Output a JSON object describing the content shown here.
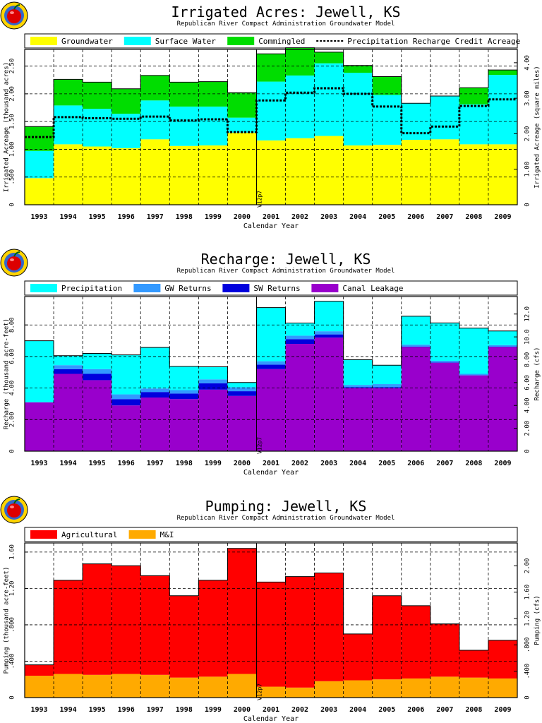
{
  "chart_data": [
    {
      "type": "area",
      "title": "Irrigated Acres: Jewell, KS",
      "subtitle": "Republican River Compact Administration Groundwater Model",
      "xlabel": "Calendar Year",
      "ylabel": "Irrigated Acreage (thousand acres)",
      "y2label": "Irrigated Acreage (square miles)",
      "ylim": [
        0,
        2.8
      ],
      "y2lim": [
        0,
        4.375
      ],
      "yticks": [
        0,
        0.5,
        1,
        1.5,
        2,
        2.5
      ],
      "ytick_labels": [
        "0",
        ".500",
        "1.00",
        "1.50",
        "2.00",
        "2.50"
      ],
      "y2ticks": [
        0,
        1,
        2,
        3,
        4
      ],
      "y2tick_labels": [
        "0",
        "1.00",
        "2.00",
        "3.00",
        "4.00"
      ],
      "stacked": true,
      "grid": true,
      "legend": "top",
      "marker_label": "V12p7",
      "categories": [
        "1993",
        "1994",
        "1995",
        "1996",
        "1997",
        "1998",
        "1999",
        "2000",
        "2001",
        "2002",
        "2003",
        "2004",
        "2005",
        "2006",
        "2007",
        "2008",
        "2009"
      ],
      "series": [
        {
          "name": "Groundwater",
          "color": "#ffff00",
          "values": [
            0.48,
            1.09,
            1.05,
            1.02,
            1.18,
            1.06,
            1.07,
            1.3,
            1.16,
            1.2,
            1.24,
            1.07,
            1.08,
            1.17,
            1.18,
            1.09,
            1.09
          ]
        },
        {
          "name": "Surface Water",
          "color": "#00ffff",
          "values": [
            0.49,
            0.7,
            0.68,
            0.62,
            0.7,
            0.71,
            0.7,
            0.27,
            1.06,
            1.13,
            1.31,
            1.31,
            0.9,
            0.66,
            0.78,
            0.72,
            1.25
          ]
        },
        {
          "name": "Commingled",
          "color": "#00dd00",
          "values": [
            0.44,
            0.47,
            0.48,
            0.45,
            0.45,
            0.44,
            0.45,
            0.45,
            0.5,
            0.5,
            0.2,
            0.13,
            0.33,
            0.0,
            0.0,
            0.3,
            0.09
          ]
        }
      ],
      "line_series": {
        "name": "Precipitation Recharge Credit Acreage",
        "color": "#000000",
        "values": [
          1.22,
          1.58,
          1.56,
          1.55,
          1.59,
          1.52,
          1.54,
          1.31,
          1.88,
          2.02,
          2.1,
          2.0,
          1.77,
          1.29,
          1.41,
          1.78,
          1.9
        ]
      }
    },
    {
      "type": "area",
      "title": "Recharge: Jewell, KS",
      "subtitle": "Republican River Compact Administration Groundwater Model",
      "xlabel": "Calendar Year",
      "ylabel": "Recharge (thousand acre-feet)",
      "y2label": "Recharge (cfs)",
      "ylim": [
        0,
        9.8
      ],
      "y2lim": [
        0,
        13.53
      ],
      "yticks": [
        0,
        2,
        4,
        6,
        8
      ],
      "ytick_labels": [
        "0",
        "2.00",
        "4.00",
        "6.00",
        "8.00"
      ],
      "y2ticks": [
        0,
        2,
        4,
        6,
        8,
        10,
        12
      ],
      "y2tick_labels": [
        "0",
        "2.00",
        "4.00",
        "6.00",
        "8.00",
        "10.0",
        "12.0"
      ],
      "stacked": true,
      "grid": true,
      "legend": "top",
      "marker_label": "V12p7",
      "categories": [
        "1993",
        "1994",
        "1995",
        "1996",
        "1997",
        "1998",
        "1999",
        "2000",
        "2001",
        "2002",
        "2003",
        "2004",
        "2005",
        "2006",
        "2007",
        "2008",
        "2009"
      ],
      "series": [
        {
          "name": "Canal Leakage",
          "color": "#9900cc",
          "values": [
            3.1,
            4.9,
            4.5,
            2.9,
            3.4,
            3.3,
            3.9,
            3.5,
            5.2,
            6.8,
            7.2,
            4.0,
            4.0,
            6.6,
            5.6,
            4.8,
            6.6
          ]
        },
        {
          "name": "SW Returns",
          "color": "#0000dd",
          "values": [
            0.0,
            0.3,
            0.4,
            0.4,
            0.35,
            0.35,
            0.4,
            0.3,
            0.28,
            0.3,
            0.2,
            0.05,
            0.05,
            0.03,
            0.03,
            0.02,
            0.02
          ]
        },
        {
          "name": "GW Returns",
          "color": "#3399ff",
          "values": [
            0.0,
            0.25,
            0.3,
            0.3,
            0.22,
            0.22,
            0.25,
            0.25,
            0.22,
            0.22,
            0.2,
            0.15,
            0.2,
            0.12,
            0.1,
            0.08,
            0.1
          ]
        },
        {
          "name": "Precipitation",
          "color": "#00ffff",
          "values": [
            3.9,
            0.6,
            1.0,
            2.5,
            2.6,
            1.5,
            0.8,
            0.3,
            3.4,
            0.8,
            1.9,
            1.6,
            1.2,
            1.8,
            2.4,
            2.9,
            0.9
          ]
        }
      ]
    },
    {
      "type": "area",
      "title": "Pumping: Jewell, KS",
      "subtitle": "Republican River Compact Administration Groundwater Model",
      "xlabel": "Calendar Year",
      "ylabel": "Pumping (thousand acre-feet)",
      "y2label": "Pumping (cfs)",
      "ylim": [
        0,
        1.7
      ],
      "y2lim": [
        0,
        2.347
      ],
      "yticks": [
        0,
        0.4,
        0.8,
        1.2,
        1.6
      ],
      "ytick_labels": [
        "0",
        ".400",
        ".800",
        "1.20",
        "1.60"
      ],
      "y2ticks": [
        0,
        0.4,
        0.8,
        1.2,
        1.6,
        2.0
      ],
      "y2tick_labels": [
        "0",
        ".400",
        ".800",
        "1.20",
        "1.60",
        "2.00"
      ],
      "stacked": true,
      "grid": true,
      "legend": "top",
      "marker_label": "V12p7",
      "categories": [
        "1993",
        "1994",
        "1995",
        "1996",
        "1997",
        "1998",
        "1999",
        "2000",
        "2001",
        "2002",
        "2003",
        "2004",
        "2005",
        "2006",
        "2007",
        "2008",
        "2009"
      ],
      "series": [
        {
          "name": "M&I",
          "color": "#ffaa00",
          "values": [
            0.24,
            0.26,
            0.25,
            0.26,
            0.25,
            0.22,
            0.23,
            0.26,
            0.12,
            0.11,
            0.18,
            0.19,
            0.2,
            0.21,
            0.23,
            0.22,
            0.21
          ]
        },
        {
          "name": "Agricultural",
          "color": "#ff0000",
          "values": [
            0.12,
            1.03,
            1.22,
            1.19,
            1.09,
            0.9,
            1.06,
            1.38,
            1.15,
            1.22,
            1.19,
            0.51,
            0.92,
            0.8,
            0.58,
            0.3,
            0.42
          ]
        }
      ]
    }
  ]
}
